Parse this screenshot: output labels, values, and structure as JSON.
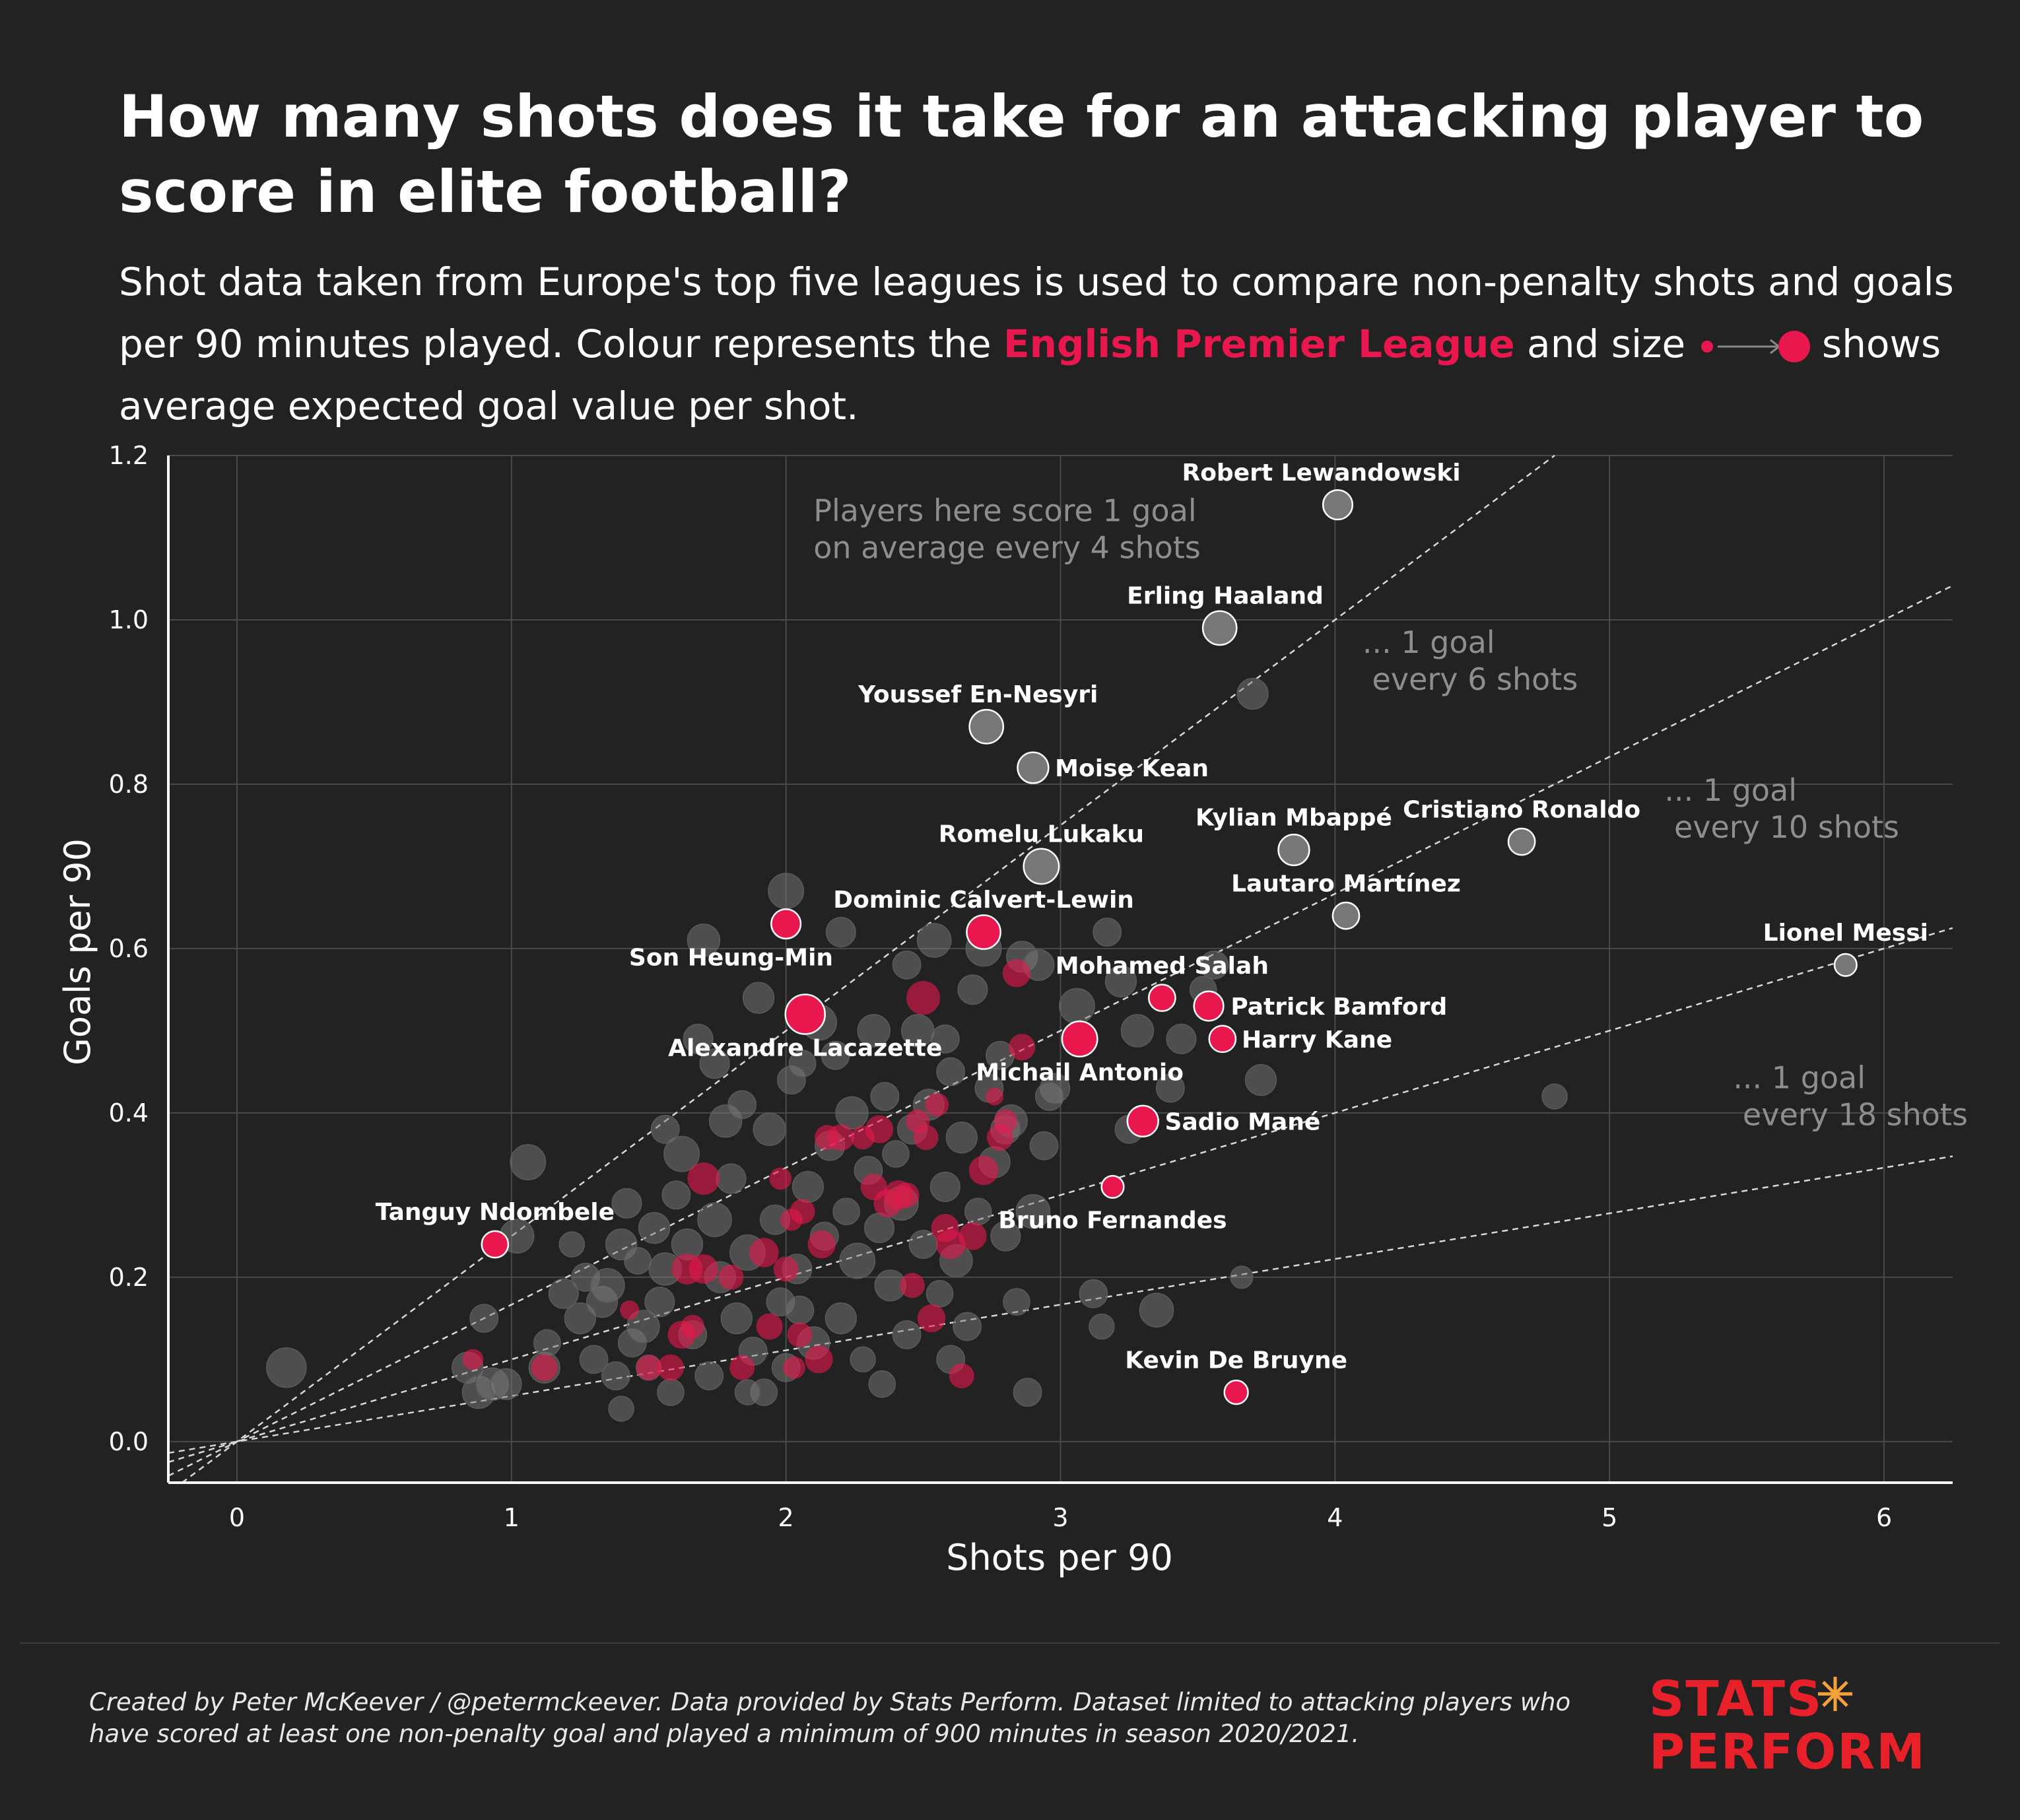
{
  "title": "How many shots does it take for an attacking player to score in elite football?",
  "subtitle": {
    "part1": "Shot data taken from Europe's top five leagues is used to compare non-penalty shots and goals per 90 minutes played. Colour represents the ",
    "highlight": "English Premier League",
    "part2": " and size ",
    "part3": " shows average expected goal value per shot."
  },
  "footer": "Created by Peter McKeever / @petermckeever. Data provided by Stats Perform. Dataset limited to attacking players who have scored at least one non-penalty goal and played a minimum of 900 minutes in season 2020/2021.",
  "logo": {
    "line1": "STATS",
    "line2": "PERFORM"
  },
  "colors": {
    "background": "#222222",
    "epl": "#e8174d",
    "other": "#7a7a7a",
    "grid": "#4a4a4a",
    "text": "#ffffff",
    "annotation": "#8e8e8e"
  },
  "chart_data": {
    "type": "scatter",
    "xlabel": "Shots per 90",
    "ylabel": "Goals per 90",
    "xlim": [
      -0.25,
      6.25
    ],
    "ylim": [
      -0.05,
      1.2
    ],
    "xticks": [
      "0",
      "1",
      "2",
      "3",
      "4",
      "5",
      "6"
    ],
    "yticks": [
      "0.0",
      "0.2",
      "0.4",
      "0.6",
      "0.8",
      "1.0",
      "1.2"
    ],
    "grid": true,
    "size_encodes": "average expected goal value per shot",
    "color_encodes": "English Premier League",
    "reference_lines": [
      {
        "shots_per_goal": 4,
        "label": [
          "Players here score 1 goal",
          "on average every 4 shots"
        ],
        "label_x": 2.1,
        "label_y": 1.12
      },
      {
        "shots_per_goal": 6,
        "label": [
          "... 1 goal",
          " every 6 shots"
        ],
        "label_x": 4.1,
        "label_y": 0.96
      },
      {
        "shots_per_goal": 10,
        "label": [
          "... 1 goal",
          " every 10 shots"
        ],
        "label_x": 5.2,
        "label_y": 0.78
      },
      {
        "shots_per_goal": 18,
        "label": [
          "... 1 goal",
          " every 18 shots"
        ],
        "label_x": 5.45,
        "label_y": 0.43
      }
    ],
    "labeled_players": [
      {
        "name": "Robert Lewandowski",
        "x": 4.01,
        "y": 1.14,
        "xg": 0.13,
        "epl": false,
        "lx": 3.95,
        "ly": 1.18
      },
      {
        "name": "Erling Haaland",
        "x": 3.58,
        "y": 0.99,
        "xg": 0.16,
        "epl": false,
        "lx": 3.6,
        "ly": 1.03
      },
      {
        "name": "Youssef En-Nesyri",
        "x": 2.73,
        "y": 0.87,
        "xg": 0.16,
        "epl": false,
        "lx": 2.7,
        "ly": 0.91
      },
      {
        "name": "Moise Kean",
        "x": 2.9,
        "y": 0.82,
        "xg": 0.14,
        "epl": false,
        "lx": 2.98,
        "ly": 0.82,
        "anchor": "start"
      },
      {
        "name": "Romelu Lukaku",
        "x": 2.93,
        "y": 0.7,
        "xg": 0.17,
        "epl": false,
        "lx": 2.93,
        "ly": 0.74
      },
      {
        "name": "Kylian Mbappé",
        "x": 3.85,
        "y": 0.72,
        "xg": 0.14,
        "epl": false,
        "lx": 3.85,
        "ly": 0.76
      },
      {
        "name": "Cristiano Ronaldo",
        "x": 4.68,
        "y": 0.73,
        "xg": 0.11,
        "epl": false,
        "lx": 4.68,
        "ly": 0.77
      },
      {
        "name": "Lautaro Martínez",
        "x": 4.04,
        "y": 0.64,
        "xg": 0.11,
        "epl": false,
        "lx": 4.04,
        "ly": 0.68
      },
      {
        "name": "Lionel Messi",
        "x": 5.86,
        "y": 0.58,
        "xg": 0.08,
        "epl": false,
        "lx": 5.86,
        "ly": 0.62
      },
      {
        "name": "Dominic Calvert-Lewin",
        "x": 2.72,
        "y": 0.62,
        "xg": 0.16,
        "epl": true,
        "lx": 2.72,
        "ly": 0.66
      },
      {
        "name": "Son Heung-Min",
        "x": 2.0,
        "y": 0.63,
        "xg": 0.13,
        "epl": true,
        "lx": 1.8,
        "ly": 0.59
      },
      {
        "name": "Mohamed Salah",
        "x": 3.37,
        "y": 0.54,
        "xg": 0.11,
        "epl": true,
        "lx": 3.37,
        "ly": 0.58
      },
      {
        "name": "Patrick Bamford",
        "x": 3.54,
        "y": 0.53,
        "xg": 0.13,
        "epl": true,
        "lx": 3.62,
        "ly": 0.53,
        "anchor": "start"
      },
      {
        "name": "Harry Kane",
        "x": 3.59,
        "y": 0.49,
        "xg": 0.11,
        "epl": true,
        "lx": 3.66,
        "ly": 0.49,
        "anchor": "start"
      },
      {
        "name": "Alexandre Lacazette",
        "x": 2.07,
        "y": 0.52,
        "xg": 0.2,
        "epl": true,
        "lx": 2.07,
        "ly": 0.48
      },
      {
        "name": "Michail Antonio",
        "x": 3.07,
        "y": 0.49,
        "xg": 0.17,
        "epl": true,
        "lx": 3.07,
        "ly": 0.45
      },
      {
        "name": "Sadio Mané",
        "x": 3.3,
        "y": 0.39,
        "xg": 0.14,
        "epl": true,
        "lx": 3.38,
        "ly": 0.39,
        "anchor": "start"
      },
      {
        "name": "Bruno Fernandes",
        "x": 3.19,
        "y": 0.31,
        "xg": 0.08,
        "epl": true,
        "lx": 3.19,
        "ly": 0.27
      },
      {
        "name": "Tanguy Ndombele",
        "x": 0.94,
        "y": 0.24,
        "xg": 0.11,
        "epl": true,
        "lx": 0.94,
        "ly": 0.28
      },
      {
        "name": "Kevin De Bruyne",
        "x": 3.64,
        "y": 0.06,
        "xg": 0.09,
        "epl": true,
        "lx": 3.64,
        "ly": 0.1
      }
    ],
    "other_players": [
      [
        0.18,
        0.09,
        0.2
      ],
      [
        0.84,
        0.09,
        0.14
      ],
      [
        0.88,
        0.06,
        0.15
      ],
      [
        0.93,
        0.07,
        0.15
      ],
      [
        0.9,
        0.15,
        0.12
      ],
      [
        1.02,
        0.25,
        0.16
      ],
      [
        1.06,
        0.34,
        0.17
      ],
      [
        1.12,
        0.09,
        0.14
      ],
      [
        1.13,
        0.12,
        0.11
      ],
      [
        1.19,
        0.18,
        0.13
      ],
      [
        1.22,
        0.24,
        0.1
      ],
      [
        1.25,
        0.15,
        0.14
      ],
      [
        1.27,
        0.2,
        0.12
      ],
      [
        1.3,
        0.1,
        0.12
      ],
      [
        1.33,
        0.17,
        0.14
      ],
      [
        1.35,
        0.19,
        0.16
      ],
      [
        1.38,
        0.08,
        0.12
      ],
      [
        1.4,
        0.24,
        0.14
      ],
      [
        1.42,
        0.29,
        0.13
      ],
      [
        1.44,
        0.12,
        0.12
      ],
      [
        1.46,
        0.22,
        0.11
      ],
      [
        1.48,
        0.14,
        0.15
      ],
      [
        1.5,
        0.09,
        0.1
      ],
      [
        1.52,
        0.26,
        0.14
      ],
      [
        1.54,
        0.17,
        0.13
      ],
      [
        1.56,
        0.21,
        0.15
      ],
      [
        1.58,
        0.06,
        0.11
      ],
      [
        1.6,
        0.3,
        0.12
      ],
      [
        1.62,
        0.35,
        0.17
      ],
      [
        1.64,
        0.24,
        0.14
      ],
      [
        1.66,
        0.13,
        0.12
      ],
      [
        1.68,
        0.49,
        0.13
      ],
      [
        1.7,
        0.61,
        0.15
      ],
      [
        1.72,
        0.08,
        0.12
      ],
      [
        1.74,
        0.27,
        0.16
      ],
      [
        1.76,
        0.2,
        0.14
      ],
      [
        1.78,
        0.39,
        0.15
      ],
      [
        1.8,
        0.32,
        0.13
      ],
      [
        1.82,
        0.15,
        0.14
      ],
      [
        1.84,
        0.41,
        0.12
      ],
      [
        1.86,
        0.23,
        0.17
      ],
      [
        1.88,
        0.11,
        0.12
      ],
      [
        1.9,
        0.54,
        0.14
      ],
      [
        1.92,
        0.06,
        0.11
      ],
      [
        1.94,
        0.38,
        0.15
      ],
      [
        1.96,
        0.27,
        0.13
      ],
      [
        1.98,
        0.17,
        0.12
      ],
      [
        2.0,
        0.67,
        0.17
      ],
      [
        2.02,
        0.44,
        0.12
      ],
      [
        2.04,
        0.21,
        0.13
      ],
      [
        2.06,
        0.46,
        0.11
      ],
      [
        2.08,
        0.31,
        0.14
      ],
      [
        2.1,
        0.12,
        0.15
      ],
      [
        2.12,
        0.51,
        0.17
      ],
      [
        2.14,
        0.25,
        0.12
      ],
      [
        2.16,
        0.36,
        0.13
      ],
      [
        2.18,
        0.47,
        0.12
      ],
      [
        2.2,
        0.15,
        0.14
      ],
      [
        2.22,
        0.28,
        0.11
      ],
      [
        2.24,
        0.4,
        0.15
      ],
      [
        2.26,
        0.22,
        0.17
      ],
      [
        2.28,
        0.1,
        0.1
      ],
      [
        2.3,
        0.33,
        0.12
      ],
      [
        2.32,
        0.5,
        0.15
      ],
      [
        2.34,
        0.26,
        0.13
      ],
      [
        2.36,
        0.42,
        0.12
      ],
      [
        2.38,
        0.19,
        0.14
      ],
      [
        2.4,
        0.35,
        0.11
      ],
      [
        2.42,
        0.29,
        0.16
      ],
      [
        2.44,
        0.13,
        0.12
      ],
      [
        2.46,
        0.38,
        0.13
      ],
      [
        2.48,
        0.5,
        0.15
      ],
      [
        2.5,
        0.24,
        0.12
      ],
      [
        2.52,
        0.41,
        0.14
      ],
      [
        2.54,
        0.61,
        0.16
      ],
      [
        2.56,
        0.18,
        0.11
      ],
      [
        2.58,
        0.31,
        0.13
      ],
      [
        2.6,
        0.45,
        0.12
      ],
      [
        2.62,
        0.22,
        0.15
      ],
      [
        2.64,
        0.37,
        0.14
      ],
      [
        2.66,
        0.14,
        0.12
      ],
      [
        2.68,
        0.55,
        0.13
      ],
      [
        2.7,
        0.28,
        0.11
      ],
      [
        2.72,
        0.6,
        0.17
      ],
      [
        2.74,
        0.43,
        0.12
      ],
      [
        2.76,
        0.34,
        0.14
      ],
      [
        2.78,
        0.47,
        0.12
      ],
      [
        2.8,
        0.25,
        0.13
      ],
      [
        2.82,
        0.39,
        0.15
      ],
      [
        2.84,
        0.17,
        0.11
      ],
      [
        2.86,
        0.59,
        0.14
      ],
      [
        2.88,
        0.06,
        0.12
      ],
      [
        2.9,
        0.28,
        0.16
      ],
      [
        2.92,
        0.58,
        0.14
      ],
      [
        2.94,
        0.36,
        0.12
      ],
      [
        2.98,
        0.43,
        0.13
      ],
      [
        3.06,
        0.53,
        0.17
      ],
      [
        3.12,
        0.18,
        0.12
      ],
      [
        3.15,
        0.14,
        0.1
      ],
      [
        3.17,
        0.62,
        0.12
      ],
      [
        3.22,
        0.56,
        0.14
      ],
      [
        3.25,
        0.38,
        0.12
      ],
      [
        3.28,
        0.5,
        0.15
      ],
      [
        3.35,
        0.16,
        0.16
      ],
      [
        3.4,
        0.43,
        0.12
      ],
      [
        3.44,
        0.49,
        0.13
      ],
      [
        3.52,
        0.55,
        0.11
      ],
      [
        3.56,
        0.58,
        0.12
      ],
      [
        3.66,
        0.2,
        0.08
      ],
      [
        3.7,
        0.91,
        0.14
      ],
      [
        3.73,
        0.44,
        0.14
      ],
      [
        4.8,
        0.42,
        0.1
      ],
      [
        2.58,
        0.49,
        0.12
      ],
      [
        2.44,
        0.58,
        0.12
      ],
      [
        1.74,
        0.46,
        0.13
      ],
      [
        1.56,
        0.38,
        0.12
      ],
      [
        2.2,
        0.62,
        0.13
      ],
      [
        2.0,
        0.09,
        0.12
      ],
      [
        2.35,
        0.07,
        0.11
      ],
      [
        2.6,
        0.1,
        0.12
      ],
      [
        1.86,
        0.06,
        0.1
      ],
      [
        2.05,
        0.16,
        0.12
      ],
      [
        1.4,
        0.04,
        0.1
      ],
      [
        0.98,
        0.07,
        0.14
      ],
      [
        2.8,
        0.38,
        0.13
      ],
      [
        2.96,
        0.42,
        0.12
      ]
    ],
    "epl_players": [
      [
        0.86,
        0.1,
        0.07
      ],
      [
        1.12,
        0.09,
        0.11
      ],
      [
        1.43,
        0.16,
        0.06
      ],
      [
        1.5,
        0.09,
        0.1
      ],
      [
        1.58,
        0.09,
        0.11
      ],
      [
        1.62,
        0.13,
        0.12
      ],
      [
        1.64,
        0.21,
        0.14
      ],
      [
        1.66,
        0.14,
        0.09
      ],
      [
        1.7,
        0.21,
        0.13
      ],
      [
        1.7,
        0.32,
        0.15
      ],
      [
        1.8,
        0.2,
        0.1
      ],
      [
        1.84,
        0.09,
        0.1
      ],
      [
        1.92,
        0.23,
        0.13
      ],
      [
        1.94,
        0.14,
        0.11
      ],
      [
        1.98,
        0.32,
        0.08
      ],
      [
        2.0,
        0.21,
        0.1
      ],
      [
        2.02,
        0.27,
        0.08
      ],
      [
        2.05,
        0.13,
        0.1
      ],
      [
        2.03,
        0.09,
        0.08
      ],
      [
        2.06,
        0.28,
        0.1
      ],
      [
        2.12,
        0.1,
        0.12
      ],
      [
        2.13,
        0.24,
        0.12
      ],
      [
        2.15,
        0.37,
        0.1
      ],
      [
        2.2,
        0.37,
        0.11
      ],
      [
        2.28,
        0.37,
        0.09
      ],
      [
        2.32,
        0.31,
        0.11
      ],
      [
        2.34,
        0.38,
        0.12
      ],
      [
        2.37,
        0.29,
        0.12
      ],
      [
        2.41,
        0.3,
        0.13
      ],
      [
        2.44,
        0.3,
        0.1
      ],
      [
        2.46,
        0.19,
        0.1
      ],
      [
        2.48,
        0.39,
        0.09
      ],
      [
        2.51,
        0.37,
        0.1
      ],
      [
        2.55,
        0.41,
        0.09
      ],
      [
        2.53,
        0.15,
        0.12
      ],
      [
        2.58,
        0.26,
        0.12
      ],
      [
        2.5,
        0.54,
        0.16
      ],
      [
        2.6,
        0.24,
        0.13
      ],
      [
        2.64,
        0.08,
        0.1
      ],
      [
        2.68,
        0.25,
        0.12
      ],
      [
        2.72,
        0.33,
        0.13
      ],
      [
        2.76,
        0.42,
        0.05
      ],
      [
        2.78,
        0.37,
        0.11
      ],
      [
        2.8,
        0.39,
        0.09
      ],
      [
        2.84,
        0.57,
        0.12
      ],
      [
        2.86,
        0.48,
        0.11
      ]
    ]
  }
}
